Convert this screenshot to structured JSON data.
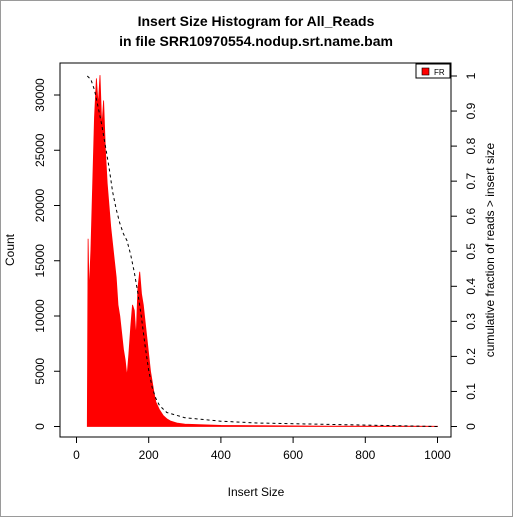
{
  "chart_data": {
    "type": "area",
    "title_line1": "Insert Size Histogram for All_Reads",
    "title_line2": "in file SRR10970554.nodup.srt.name.bam",
    "xlabel": "Insert Size",
    "ylabel": "Count",
    "y2label": "cumulative fraction of reads > insert size",
    "xlim": [
      0,
      1000
    ],
    "ylim": [
      0,
      32000
    ],
    "y2lim": [
      0,
      1
    ],
    "x_ticks": [
      "0",
      "200",
      "400",
      "600",
      "800",
      "1000"
    ],
    "y_ticks": [
      "0",
      "5000",
      "10000",
      "15000",
      "20000",
      "25000",
      "30000"
    ],
    "y2_ticks": [
      "0",
      "0.1",
      "0.2",
      "0.3",
      "0.4",
      "0.5",
      "0.6",
      "0.7",
      "0.8",
      "0.9",
      "1"
    ],
    "grid": false,
    "legend_position": "top-right",
    "series": [
      {
        "name": "FR",
        "color": "#ff0000",
        "points": [
          [
            30,
            0
          ],
          [
            32,
            17000
          ],
          [
            35,
            12000
          ],
          [
            40,
            16000
          ],
          [
            45,
            22000
          ],
          [
            50,
            28000
          ],
          [
            55,
            31500
          ],
          [
            60,
            29000
          ],
          [
            65,
            31800
          ],
          [
            70,
            27000
          ],
          [
            75,
            29500
          ],
          [
            80,
            25000
          ],
          [
            85,
            22000
          ],
          [
            90,
            20000
          ],
          [
            95,
            18000
          ],
          [
            100,
            16500
          ],
          [
            105,
            15000
          ],
          [
            110,
            13500
          ],
          [
            115,
            11000
          ],
          [
            120,
            10000
          ],
          [
            125,
            8500
          ],
          [
            130,
            7000
          ],
          [
            135,
            6000
          ],
          [
            140,
            4500
          ],
          [
            145,
            6500
          ],
          [
            150,
            9000
          ],
          [
            155,
            11000
          ],
          [
            160,
            10500
          ],
          [
            165,
            8000
          ],
          [
            170,
            12500
          ],
          [
            175,
            14000
          ],
          [
            180,
            12000
          ],
          [
            185,
            11000
          ],
          [
            190,
            9500
          ],
          [
            195,
            8000
          ],
          [
            200,
            6500
          ],
          [
            205,
            5000
          ],
          [
            210,
            4000
          ],
          [
            215,
            3000
          ],
          [
            220,
            2200
          ],
          [
            230,
            1500
          ],
          [
            240,
            1000
          ],
          [
            250,
            700
          ],
          [
            260,
            500
          ],
          [
            280,
            300
          ],
          [
            300,
            220
          ],
          [
            350,
            150
          ],
          [
            400,
            100
          ],
          [
            500,
            70
          ],
          [
            600,
            50
          ],
          [
            700,
            40
          ],
          [
            800,
            30
          ],
          [
            900,
            25
          ],
          [
            1000,
            20
          ]
        ]
      }
    ],
    "cumulative": {
      "color": "#000000",
      "style": "dashed",
      "points": [
        [
          30,
          1.0
        ],
        [
          40,
          0.99
        ],
        [
          50,
          0.96
        ],
        [
          60,
          0.91
        ],
        [
          70,
          0.86
        ],
        [
          80,
          0.8
        ],
        [
          90,
          0.74
        ],
        [
          100,
          0.67
        ],
        [
          110,
          0.62
        ],
        [
          120,
          0.58
        ],
        [
          130,
          0.55
        ],
        [
          140,
          0.53
        ],
        [
          150,
          0.49
        ],
        [
          160,
          0.44
        ],
        [
          170,
          0.38
        ],
        [
          180,
          0.31
        ],
        [
          190,
          0.23
        ],
        [
          200,
          0.16
        ],
        [
          210,
          0.11
        ],
        [
          220,
          0.08
        ],
        [
          230,
          0.06
        ],
        [
          250,
          0.04
        ],
        [
          300,
          0.025
        ],
        [
          400,
          0.015
        ],
        [
          500,
          0.01
        ],
        [
          600,
          0.008
        ],
        [
          700,
          0.006
        ],
        [
          800,
          0.004
        ],
        [
          900,
          0.002
        ],
        [
          1000,
          0.0
        ]
      ]
    }
  }
}
